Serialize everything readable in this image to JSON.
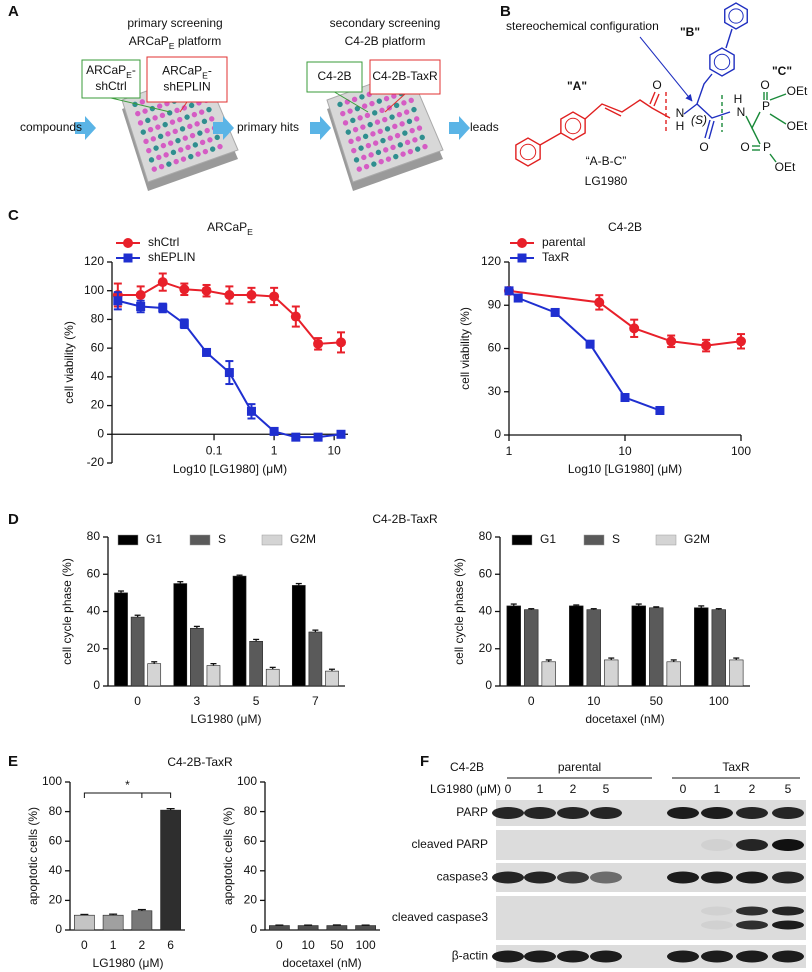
{
  "panel_labels": [
    "A",
    "B",
    "C",
    "D",
    "E",
    "F"
  ],
  "panel_a": {
    "stage1_title": "primary screening",
    "stage1_platform": [
      "ARCaP",
      "E",
      " platform"
    ],
    "stage1_boxes": [
      {
        "lines": [
          [
            "ARCaP",
            "E",
            "-"
          ],
          [
            "shCtrl"
          ]
        ],
        "color": "#3a9b3a"
      },
      {
        "lines": [
          [
            "ARCaP",
            "E",
            "-"
          ],
          [
            "shEPLIN"
          ]
        ],
        "color": "#e03030"
      }
    ],
    "stage2_title": "secondary screening",
    "stage2_platform": [
      "C4-2B platform"
    ],
    "stage2_boxes": [
      {
        "lines": [
          [
            "C4-2B"
          ]
        ],
        "color": "#3a9b3a"
      },
      {
        "lines": [
          [
            "C4-2B-TaxR"
          ]
        ],
        "color": "#e03030"
      }
    ],
    "flow": [
      "compounds",
      "primary hits",
      "leads"
    ]
  },
  "panel_b": {
    "annotation": "stereochemical configuration",
    "fragments": [
      {
        "text": "\"A\"",
        "color": "#e02020"
      },
      {
        "text": "\"B\"",
        "color": "#1f2fc0"
      },
      {
        "text": "\"C\"",
        "color": "#1a8a3a"
      }
    ],
    "name": "“A-B-C”",
    "compound": "LG1980",
    "atoms": [
      {
        "text": "O",
        "color": "#e02020"
      },
      {
        "text": "N",
        "color": "#1f2fc0"
      },
      {
        "text": "H",
        "color": "#1f2fc0"
      },
      {
        "text": "(S)",
        "color": "#1f2fc0"
      },
      {
        "text": "O",
        "color": "#1f2fc0"
      },
      {
        "text": "H",
        "color": "#1a8a3a"
      },
      {
        "text": "N",
        "color": "#1a8a3a"
      },
      {
        "text": "O",
        "color": "#1a8a3a"
      },
      {
        "text": "P",
        "color": "#1a8a3a"
      },
      {
        "text": "OEt",
        "color": "#1a8a3a"
      },
      {
        "text": "OEt",
        "color": "#1a8a3a"
      },
      {
        "text": "O",
        "color": "#1a8a3a"
      },
      {
        "text": "P",
        "color": "#1a8a3a"
      },
      {
        "text": "OEt",
        "color": "#1a8a3a"
      }
    ]
  },
  "panel_d_title": "C4-2B-TaxR",
  "panel_e_title": "C4-2B-TaxR",
  "chart_data": [
    {
      "type": "line",
      "title": [
        "ARCaP",
        "E"
      ],
      "x_label": "Log10 [LG1980] (μM)",
      "y_label": "cell viability (%)",
      "xscale": "log",
      "xlim": [
        0.002,
        17
      ],
      "xticks": [
        0.1,
        1,
        10
      ],
      "ylim": [
        -20,
        120
      ],
      "yticks": [
        -20,
        0,
        20,
        40,
        60,
        80,
        100,
        120
      ],
      "legend": "upper-left",
      "series": [
        {
          "name": "shCtrl",
          "color": "#e8202a",
          "marker": "circle",
          "x": [
            0.0025,
            0.006,
            0.014,
            0.032,
            0.075,
            0.18,
            0.42,
            1,
            2.3,
            5.4,
            13
          ],
          "values": [
            97,
            97,
            106,
            101,
            100,
            97,
            97,
            96,
            82,
            63,
            64
          ],
          "errors": [
            8,
            6,
            6,
            4,
            4,
            6,
            5,
            6,
            7,
            4,
            7
          ]
        },
        {
          "name": "shEPLIN",
          "color": "#1f2fd0",
          "marker": "square",
          "x": [
            0.0025,
            0.006,
            0.014,
            0.032,
            0.075,
            0.18,
            0.42,
            1,
            2.3,
            5.4,
            13
          ],
          "values": [
            93,
            89,
            88,
            77,
            57,
            43,
            16,
            2,
            -2,
            -2,
            0
          ],
          "errors": [
            6,
            4,
            3,
            3,
            2,
            8,
            5,
            2,
            1,
            1,
            1
          ]
        }
      ]
    },
    {
      "type": "line",
      "title": [
        "C4-2B"
      ],
      "x_label": "Log10 [LG1980] (μM)",
      "y_label": "cell viability (%)",
      "xscale": "log",
      "xlim": [
        1,
        100
      ],
      "xticks": [
        1,
        10,
        100
      ],
      "ylim": [
        0,
        120
      ],
      "yticks": [
        0,
        30,
        60,
        90,
        120
      ],
      "legend": "upper-left",
      "series": [
        {
          "name": "parental",
          "color": "#e8202a",
          "marker": "circle",
          "x": [
            1,
            6,
            12,
            25,
            50,
            100
          ],
          "values": [
            100,
            92,
            74,
            65,
            62,
            65
          ],
          "errors": [
            1,
            5,
            6,
            4,
            4,
            5
          ]
        },
        {
          "name": "TaxR",
          "color": "#1f2fd0",
          "marker": "square",
          "x": [
            1,
            1.2,
            2.5,
            5,
            10,
            20
          ],
          "values": [
            100,
            95,
            85,
            63,
            26,
            17
          ],
          "errors": [
            1,
            1,
            1,
            2,
            1,
            1
          ]
        }
      ]
    },
    {
      "type": "bar",
      "x_label": "LG1980 (μM)",
      "y_label": "cell cycle phase (%)",
      "categories": [
        "0",
        "3",
        "5",
        "7"
      ],
      "ylim": [
        0,
        80
      ],
      "yticks": [
        0,
        20,
        40,
        60,
        80
      ],
      "legend": "top",
      "series": [
        {
          "name": "G1",
          "color": "#000000",
          "values": [
            50,
            55,
            59,
            54
          ],
          "errors": [
            1,
            1,
            0.5,
            1
          ]
        },
        {
          "name": "S",
          "color": "#5a5a5a",
          "values": [
            37,
            31,
            24,
            29
          ],
          "errors": [
            1,
            1,
            1,
            1
          ]
        },
        {
          "name": "G2M",
          "color": "#d4d4d4",
          "values": [
            12,
            11,
            9,
            8
          ],
          "errors": [
            1,
            1,
            1,
            1
          ]
        }
      ]
    },
    {
      "type": "bar",
      "x_label": "docetaxel (nM)",
      "y_label": "cell cycle phase (%)",
      "categories": [
        "0",
        "10",
        "50",
        "100"
      ],
      "ylim": [
        0,
        80
      ],
      "yticks": [
        0,
        20,
        40,
        60,
        80
      ],
      "legend": "top",
      "series": [
        {
          "name": "G1",
          "color": "#000000",
          "values": [
            43,
            43,
            43,
            42
          ],
          "errors": [
            1,
            0.5,
            1,
            1
          ]
        },
        {
          "name": "S",
          "color": "#5a5a5a",
          "values": [
            41,
            41,
            42,
            41
          ],
          "errors": [
            0.5,
            0.5,
            0.5,
            0.5
          ]
        },
        {
          "name": "G2M",
          "color": "#d4d4d4",
          "values": [
            13,
            14,
            13,
            14
          ],
          "errors": [
            1,
            1,
            1,
            1
          ]
        }
      ]
    },
    {
      "type": "bar",
      "x_label": "LG1980 (μM)",
      "y_label": "apoptotic cells (%)",
      "categories": [
        "0",
        "1",
        "2",
        "6"
      ],
      "values": [
        10,
        10,
        13,
        81
      ],
      "errors": [
        0.5,
        0.7,
        0.8,
        1
      ],
      "colors": [
        "#c4c4c4",
        "#a0a0a0",
        "#787878",
        "#2e2e2e"
      ],
      "annotation": "*",
      "ylim": [
        0,
        100
      ],
      "yticks": [
        0,
        20,
        40,
        60,
        80,
        100
      ]
    },
    {
      "type": "bar",
      "x_label": "docetaxel (nM)",
      "y_label": "apoptotic cells (%)",
      "categories": [
        "0",
        "10",
        "50",
        "100"
      ],
      "values": [
        3,
        3,
        3,
        3
      ],
      "errors": [
        0.3,
        0.3,
        0.4,
        0.3
      ],
      "colors": [
        "#505050",
        "#505050",
        "#505050",
        "#505050"
      ],
      "ylim": [
        0,
        100
      ],
      "yticks": [
        0,
        20,
        40,
        60,
        80,
        100
      ]
    }
  ],
  "panel_f": {
    "cell_line_label": "C4-2B",
    "groups": [
      "parental",
      "TaxR"
    ],
    "dose_label": "LG1980 (μM)",
    "doses": [
      "0",
      "1",
      "2",
      "5",
      "0",
      "1",
      "2",
      "5"
    ],
    "rows": [
      "PARP",
      "cleaved PARP",
      "caspase3",
      "cleaved caspase3",
      "β-actin"
    ]
  }
}
